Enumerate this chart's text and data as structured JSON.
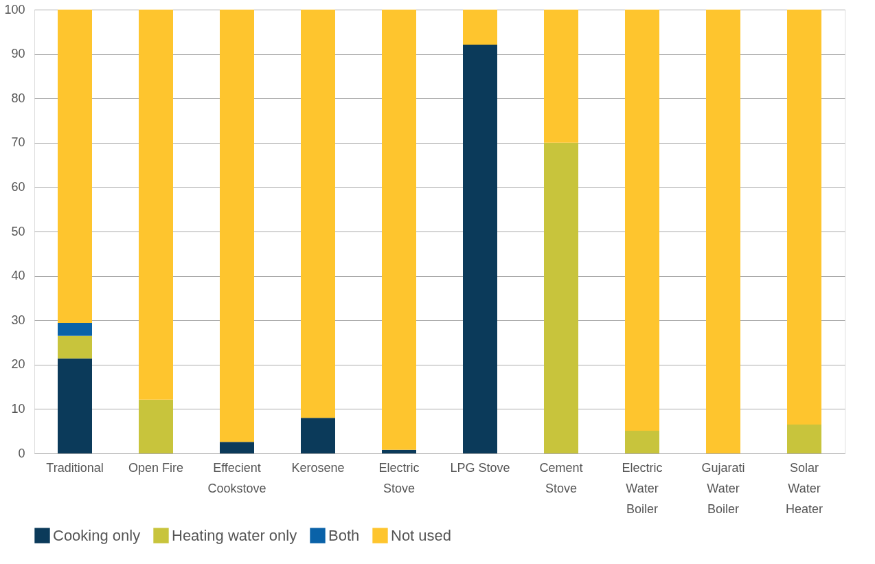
{
  "chart_data": {
    "type": "bar",
    "stacked": true,
    "categories": [
      "Traditional",
      "Open Fire",
      "Effecient Cookstove",
      "Kerosene",
      "Electric Stove",
      "LPG Stove",
      "Cement Stove",
      "Electric Water Boiler",
      "Gujarati Water Boiler",
      "Solar Water Heater"
    ],
    "series": [
      {
        "name": "Cooking only",
        "color": "#0b3a5a",
        "values": [
          21.4,
          0,
          2.6,
          8.0,
          0.8,
          92.1,
          0,
          0,
          0,
          0
        ]
      },
      {
        "name": "Heating water only",
        "color": "#c8c43c",
        "values": [
          5.1,
          12.1,
          0,
          0,
          0,
          0,
          70.0,
          5.1,
          0,
          6.5
        ]
      },
      {
        "name": "Both",
        "color": "#0a62a8",
        "values": [
          2.9,
          0,
          0,
          0,
          0,
          0,
          0,
          0,
          0,
          0
        ]
      },
      {
        "name": "Not used",
        "color": "#fec52e",
        "values": [
          70.6,
          87.9,
          97.4,
          92.0,
          99.2,
          7.9,
          30.0,
          94.9,
          100,
          93.5
        ]
      }
    ],
    "ylim": [
      0,
      100
    ],
    "yticks": [
      0,
      10,
      20,
      30,
      40,
      50,
      60,
      70,
      80,
      90,
      100
    ],
    "grid": "y",
    "legend": "bottom"
  }
}
